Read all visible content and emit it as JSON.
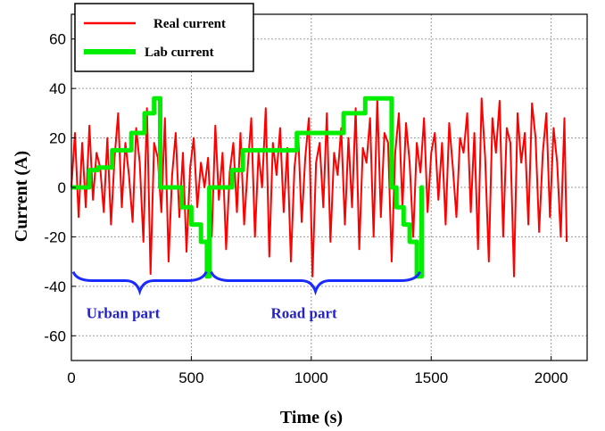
{
  "chart_data": {
    "type": "line",
    "xlabel": "Time (s)",
    "ylabel": "Current (A)",
    "xlim": [
      0,
      2150
    ],
    "ylim": [
      -70,
      70
    ],
    "xticks": [
      0,
      500,
      1000,
      1500,
      2000
    ],
    "yticks": [
      -60,
      -40,
      -20,
      0,
      20,
      40,
      60
    ],
    "x_tick_labels": [
      "0",
      "500",
      "1000",
      "1500",
      "2000"
    ],
    "y_tick_labels": [
      "-60",
      "-40",
      "-20",
      "0",
      "20",
      "40",
      "60"
    ],
    "grid": true,
    "legend_position": "top-left",
    "series": [
      {
        "name": "Real current",
        "color": "#ff0000",
        "x": [
          0,
          15,
          30,
          45,
          60,
          75,
          90,
          105,
          120,
          135,
          150,
          165,
          180,
          195,
          210,
          225,
          240,
          255,
          270,
          285,
          300,
          315,
          330,
          345,
          360,
          375,
          390,
          405,
          420,
          435,
          450,
          465,
          480,
          495,
          510,
          525,
          540,
          555,
          570,
          585,
          600,
          615,
          630,
          645,
          660,
          675,
          690,
          705,
          720,
          735,
          750,
          765,
          780,
          795,
          810,
          825,
          840,
          855,
          870,
          885,
          900,
          915,
          930,
          945,
          960,
          975,
          990,
          1005,
          1020,
          1035,
          1050,
          1065,
          1080,
          1095,
          1110,
          1125,
          1140,
          1155,
          1170,
          1185,
          1200,
          1215,
          1230,
          1245,
          1260,
          1275,
          1290,
          1305,
          1320,
          1335,
          1350,
          1365,
          1380,
          1395,
          1410,
          1425,
          1440,
          1455,
          1470,
          1485,
          1500,
          1515,
          1530,
          1545,
          1560,
          1575,
          1590,
          1605,
          1620,
          1635,
          1650,
          1665,
          1680,
          1695,
          1710,
          1725,
          1740,
          1755,
          1770,
          1785,
          1800,
          1815,
          1830,
          1845,
          1860,
          1875,
          1890,
          1905,
          1920,
          1935,
          1950,
          1965,
          1980,
          1995,
          2010,
          2025,
          2040,
          2055,
          2065
        ],
        "values": [
          0,
          22,
          -12,
          18,
          -8,
          25,
          -5,
          14,
          8,
          -10,
          20,
          -15,
          12,
          30,
          -8,
          18,
          5,
          -14,
          24,
          10,
          -22,
          32,
          -35,
          18,
          12,
          -10,
          28,
          -30,
          5,
          22,
          -12,
          14,
          -26,
          8,
          20,
          -8,
          10,
          0,
          12,
          -20,
          25,
          -5,
          14,
          -25,
          6,
          18,
          -10,
          22,
          -15,
          8,
          28,
          -20,
          14,
          0,
          32,
          -28,
          18,
          5,
          24,
          -10,
          16,
          -30,
          8,
          22,
          -14,
          12,
          28,
          -36,
          10,
          18,
          -8,
          30,
          -22,
          14,
          5,
          24,
          -15,
          20,
          -8,
          32,
          -25,
          16,
          10,
          28,
          -20,
          36,
          -12,
          22,
          18,
          -30,
          14,
          30,
          -8,
          26,
          10,
          -20,
          18,
          6,
          28,
          -10,
          14,
          22,
          -5,
          18,
          -15,
          26,
          8,
          -12,
          20,
          14,
          30,
          -10,
          22,
          -25,
          36,
          12,
          -30,
          28,
          14,
          35,
          -20,
          24,
          18,
          -36,
          30,
          10,
          22,
          -15,
          34,
          20,
          -18,
          14,
          30,
          -12,
          24,
          10,
          -20,
          28,
          -22
        ]
      },
      {
        "name": "Lab current",
        "color": "#00ee00",
        "x": [
          0,
          75,
          75,
          110,
          110,
          170,
          170,
          250,
          250,
          305,
          305,
          345,
          345,
          370,
          370,
          380,
          380,
          460,
          460,
          500,
          500,
          540,
          540,
          565,
          565,
          575,
          575,
          670,
          670,
          715,
          715,
          775,
          775,
          940,
          940,
          985,
          985,
          1135,
          1135,
          1225,
          1225,
          1335,
          1335,
          1355,
          1355,
          1385,
          1385,
          1410,
          1410,
          1440,
          1440,
          1460,
          1460,
          1468
        ],
        "values": [
          0,
          0,
          7,
          7,
          8,
          8,
          15,
          15,
          22,
          22,
          30,
          30,
          36,
          36,
          0,
          0,
          0,
          0,
          -8,
          -8,
          -15,
          -15,
          -22,
          -22,
          -36,
          -36,
          0,
          0,
          7,
          7,
          15,
          15,
          15,
          15,
          22,
          22,
          22,
          22,
          30,
          30,
          36,
          36,
          0,
          0,
          -8,
          -8,
          -15,
          -15,
          -22,
          -22,
          -36,
          -36,
          0,
          0
        ]
      }
    ],
    "annotations": [
      {
        "text": "Urban part",
        "x_from": 0,
        "x_to": 570,
        "y": -37
      },
      {
        "text": "Road part",
        "x_from": 575,
        "x_to": 1460,
        "y": -37
      }
    ]
  }
}
